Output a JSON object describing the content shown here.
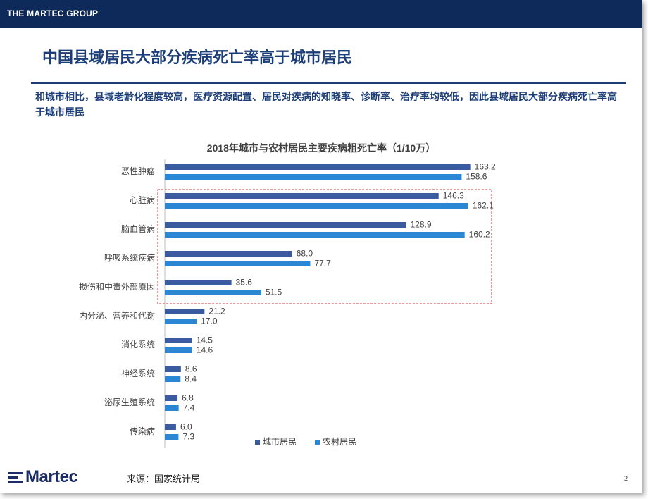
{
  "header": {
    "brand": "THE MARTEC GROUP"
  },
  "slide": {
    "title": "中国县域居民大部分疾病死亡率高于城市居民",
    "subtitle": "和城市相比，县域老龄化程度较高，医疗资源配置、居民对疾病的知晓率、诊断率、治疗率均较低，因此县域居民大部分疾病死亡率高于城市居民",
    "source": "来源：国家统计局",
    "page": "2",
    "logo": "Martec"
  },
  "colors": {
    "urban": "#3a5ba0",
    "rural": "#2b86d4",
    "brand": "#0d2a5a",
    "highlight": "#d9363e"
  },
  "chart_data": {
    "type": "bar",
    "orientation": "horizontal",
    "title": "2018年城市与农村居民主要疾病粗死亡率（1/10万）",
    "categories": [
      "恶性肿瘤",
      "心脏病",
      "脑血管病",
      "呼吸系统疾病",
      "损伤和中毒外部原因",
      "内分泌、营养和代谢",
      "消化系统",
      "神经系统",
      "泌尿生殖系统",
      "传染病"
    ],
    "series": [
      {
        "name": "城市居民",
        "values": [
          163.2,
          146.3,
          128.9,
          68.0,
          35.6,
          21.2,
          14.5,
          8.6,
          6.8,
          6.0
        ]
      },
      {
        "name": "农村居民",
        "values": [
          158.6,
          162.1,
          160.2,
          77.7,
          51.5,
          17.0,
          14.6,
          8.4,
          7.4,
          7.3
        ]
      }
    ],
    "xlim": [
      0,
      175
    ],
    "data_labels": true,
    "legend": "bottom",
    "highlight": {
      "from_category": "心脏病",
      "to_category": "损伤和中毒外部原因",
      "style": "dashed-box"
    }
  }
}
